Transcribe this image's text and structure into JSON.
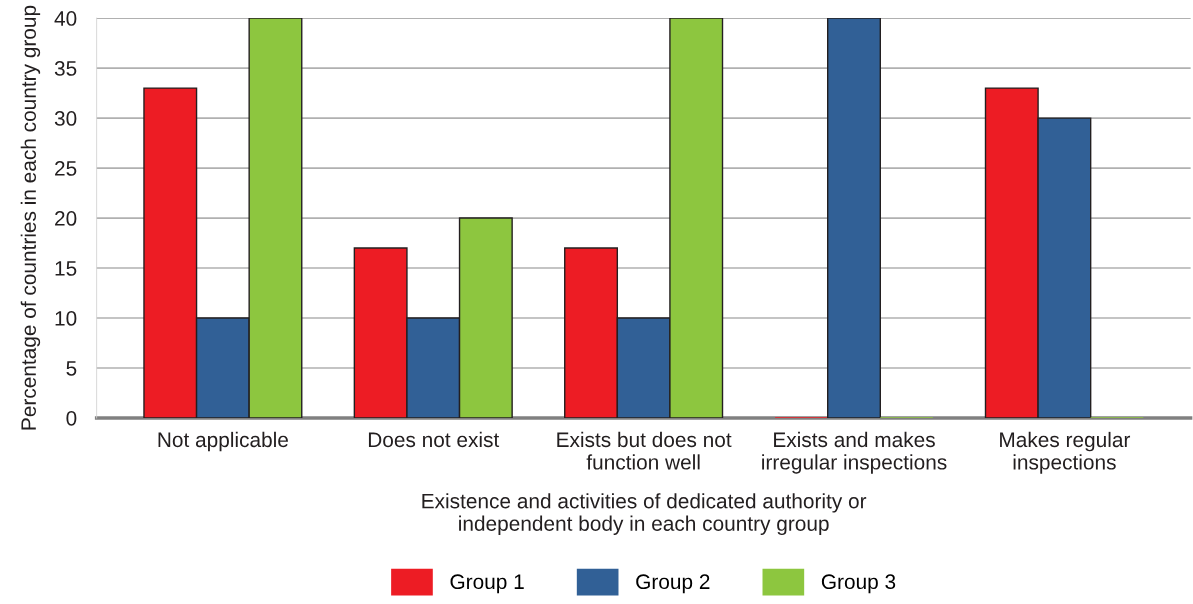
{
  "chart_data": {
    "type": "bar",
    "categories": [
      "Not applicable",
      "Does not exist",
      "Exists but does not function well",
      "Exists and makes irregular inspections",
      "Makes regular inspections"
    ],
    "series": [
      {
        "name": "Group 1",
        "color": "#ed1c24",
        "values": [
          33,
          17,
          17,
          0,
          33
        ]
      },
      {
        "name": "Group 2",
        "color": "#316096",
        "values": [
          10,
          10,
          10,
          40,
          30
        ]
      },
      {
        "name": "Group 3",
        "color": "#8dc63f",
        "values": [
          40,
          20,
          40,
          0,
          0
        ]
      }
    ],
    "xlabel": "Existence and activities of dedicated authority or independent body in each country group",
    "ylabel": "Percentage of countries in each country group",
    "ylim": [
      0,
      40
    ],
    "yticks": [
      0,
      5,
      10,
      15,
      20,
      25,
      30,
      35,
      40
    ],
    "grid": "y",
    "legend": "bottom"
  }
}
